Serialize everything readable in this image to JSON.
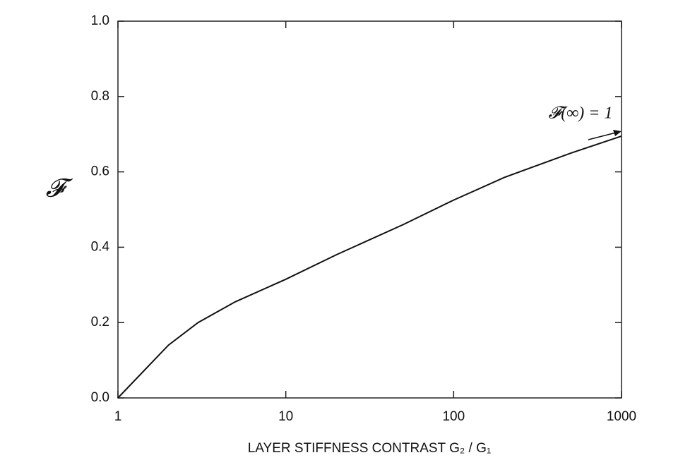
{
  "chart_data": {
    "type": "line",
    "xlabel": "LAYER STIFFNESS CONTRAST  G₂ / G₁",
    "ylabel": "𝓕",
    "annotation": "𝓕(∞) = 1",
    "x": [
      1,
      2,
      3,
      5,
      10,
      20,
      50,
      100,
      200,
      500,
      1000
    ],
    "values": [
      0,
      0.14,
      0.2,
      0.255,
      0.315,
      0.38,
      0.46,
      0.525,
      0.585,
      0.65,
      0.695
    ],
    "color": "#111111",
    "xlog": true,
    "xlim": [
      1,
      1000
    ],
    "xticks": [
      1,
      10,
      100,
      1000
    ],
    "ylim": [
      0,
      1
    ],
    "yticks": [
      {
        "value": 0,
        "label": "0.0"
      },
      0.2,
      0.4,
      0.6,
      0.8,
      {
        "value": 1,
        "label": "1.0"
      }
    ]
  }
}
